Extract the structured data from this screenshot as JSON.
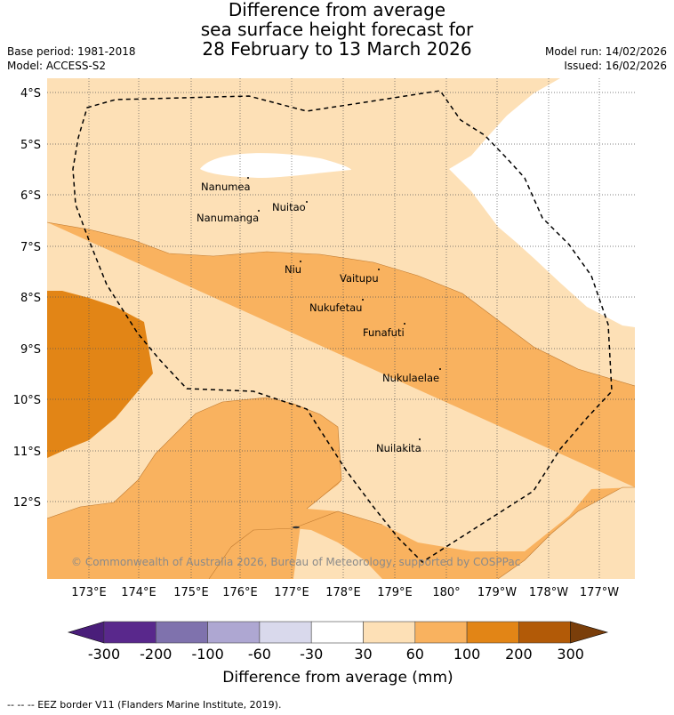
{
  "title": {
    "line1": "Difference from average",
    "line2": "sea surface height forecast for",
    "line3": "28 February to 13 March 2026"
  },
  "meta": {
    "base_period": "Base period: 1981-2018",
    "model": "Model: ACCESS-S2",
    "model_run": "Model run: 14/02/2026",
    "issued": "Issued: 16/02/2026"
  },
  "map": {
    "lat_labels": [
      "4°S",
      "5°S",
      "6°S",
      "7°S",
      "8°S",
      "9°S",
      "10°S",
      "11°S",
      "12°S"
    ],
    "lon_labels": [
      "173°E",
      "174°E",
      "175°E",
      "176°E",
      "177°E",
      "178°E",
      "179°E",
      "180°",
      "179°W",
      "178°W",
      "177°W"
    ],
    "places": [
      "Nanumea",
      "Nuitao",
      "Nanumanga",
      "Niu",
      "Vaitupu",
      "Nukufetau",
      "Funafuti",
      "Nukulaelae",
      "Nuilakita"
    ],
    "copyright": "© Commonwealth of Australia 2026, Bureau of Meteorology, supported by COSPPac"
  },
  "colorbar": {
    "ticks": [
      "-300",
      "-200",
      "-100",
      "-60",
      "-30",
      "30",
      "60",
      "100",
      "200",
      "300"
    ],
    "colors": [
      "#4a1e7a",
      "#59288c",
      "#7f72ad",
      "#aea7d2",
      "#d9d9ec",
      "#ffffff",
      "#fde0b6",
      "#f9b25f",
      "#e28516",
      "#b25a07",
      "#7a3e0a"
    ],
    "label": "Difference from average (mm)"
  },
  "footer": "--  --  -- EEZ border V11 (Flanders Marine Institute, 2019)."
}
